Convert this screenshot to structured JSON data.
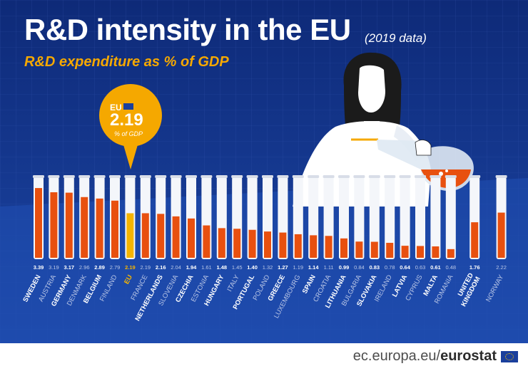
{
  "header": {
    "title": "R&D intensity in the EU",
    "year_note": "(2019 data)",
    "subtitle": "R&D expenditure as % of GDP"
  },
  "eu_bubble": {
    "label": "EU",
    "value": "2.19",
    "unit": "% of GDP"
  },
  "footer": {
    "url_prefix": "ec.europa.eu/",
    "url_brand": "eurostat"
  },
  "colors": {
    "background": "#1a3f9c",
    "bar_fill": "#e8500f",
    "eu_fill": "#f5b400",
    "subtitle": "#f5a800"
  },
  "chart_data": {
    "type": "bar",
    "title": "R&D intensity in the EU",
    "subtitle": "R&D expenditure as % of GDP",
    "unit": "% of GDP",
    "ylim": [
      0,
      3.8
    ],
    "categories": [
      "SWEDEN",
      "AUSTRIA",
      "GERMANY",
      "DENMARK",
      "BELGIUM",
      "FINLAND",
      "EU",
      "FRANCE",
      "NETHERLANDS",
      "SLOVENIA",
      "CZECHIA",
      "ESTONIA",
      "HUNGARY",
      "ITALY",
      "PORTUGAL",
      "POLAND",
      "GREECE",
      "LUXEMBOURG",
      "SPAIN",
      "CROATIA",
      "LITHUANIA",
      "BULGARIA",
      "SLOVAKIA",
      "IRELAND",
      "LATVIA",
      "CYPRUS",
      "MALTA",
      "ROMANIA",
      "UNITED KINGDOM",
      "NORWAY"
    ],
    "values": [
      3.39,
      3.19,
      3.17,
      2.96,
      2.89,
      2.79,
      2.19,
      2.19,
      2.16,
      2.04,
      1.94,
      1.61,
      1.48,
      1.45,
      1.4,
      1.32,
      1.27,
      1.19,
      1.14,
      1.11,
      0.99,
      0.84,
      0.83,
      0.78,
      0.64,
      0.63,
      0.61,
      0.48,
      1.76,
      2.22
    ],
    "value_labels": [
      "3.39",
      "3.19",
      "3.17",
      "2.96",
      "2.89",
      "2.79",
      "2.19",
      "2.19",
      "2.16",
      "2.04",
      "1.94",
      "1.61",
      "1.48",
      "1.45",
      "1.40",
      "1.32",
      "1.27",
      "1.19",
      "1.14",
      "1.11",
      "0.99",
      "0.84",
      "0.83",
      "0.78",
      "0.64",
      "0.63",
      "0.61",
      "0.48",
      "1.76",
      "2.22"
    ],
    "label_lines": [
      [
        "SWEDEN"
      ],
      [
        "AUSTRIA"
      ],
      [
        "GERMANY"
      ],
      [
        "DENMARK"
      ],
      [
        "BELGIUM"
      ],
      [
        "FINLAND"
      ],
      [
        "EU"
      ],
      [
        "FRANCE"
      ],
      [
        "NETHERLANDS"
      ],
      [
        "SLOVENIA"
      ],
      [
        "CZECHIA"
      ],
      [
        "ESTONIA"
      ],
      [
        "HUNGARY"
      ],
      [
        "ITALY"
      ],
      [
        "PORTUGAL"
      ],
      [
        "POLAND"
      ],
      [
        "GREECE"
      ],
      [
        "LUXEMBOURG"
      ],
      [
        "SPAIN"
      ],
      [
        "CROATIA"
      ],
      [
        "LITHUANIA"
      ],
      [
        "BULGARIA"
      ],
      [
        "SLOVAKIA"
      ],
      [
        "IRELAND"
      ],
      [
        "LATVIA"
      ],
      [
        "CYPRUS"
      ],
      [
        "MALTA"
      ],
      [
        "ROMANIA"
      ],
      [
        "UNITED",
        "KINGDOM"
      ],
      [
        "NORWAY"
      ]
    ],
    "bold_labels": [
      "SWEDEN",
      "GERMANY",
      "BELGIUM",
      "EU",
      "NETHERLANDS",
      "CZECHIA",
      "HUNGARY",
      "PORTUGAL",
      "GREECE",
      "SPAIN",
      "LITHUANIA",
      "SLOVAKIA",
      "LATVIA",
      "MALTA",
      "UNITED KINGDOM"
    ],
    "highlight": "EU",
    "xlabel": "",
    "ylabel": ""
  }
}
